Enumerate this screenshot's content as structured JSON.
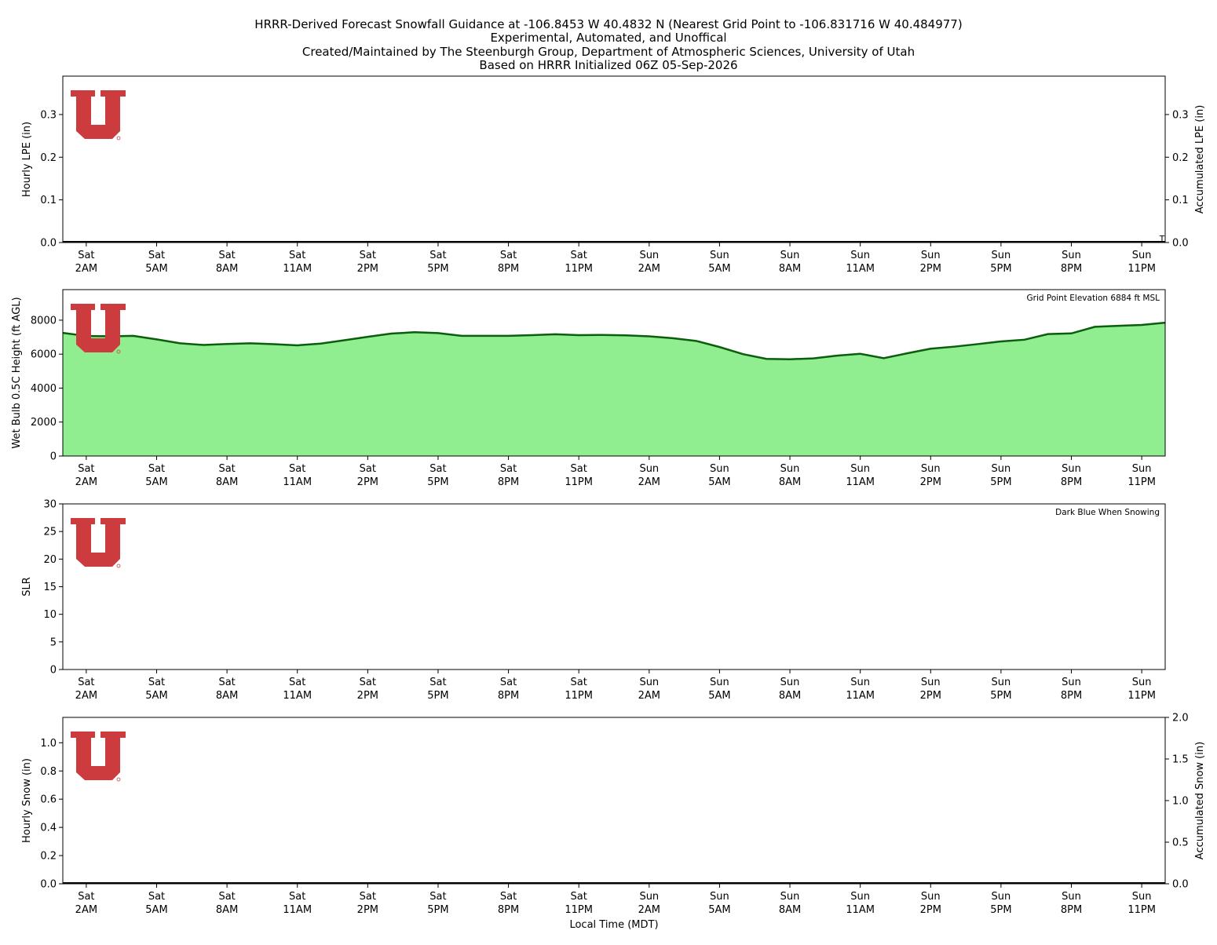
{
  "header": {
    "title_lines": [
      "HRRR-Derived Forecast Snowfall Guidance at -106.8453 W 40.4832 N (Nearest Grid Point to -106.831716 W 40.484977)",
      "Experimental, Automated, and Unoffical",
      "Created/Maintained by The Steenburgh Group, Department of Atmospheric Sciences, University of Utah",
      "Based on HRRR Initialized 06Z 05-Sep-2026"
    ]
  },
  "colors": {
    "logo_red": "#cc3b3e",
    "wetbulb_fill": "#90ee90",
    "wetbulb_line": "#0b5e0b",
    "axis": "#000000"
  },
  "chart_data": [
    {
      "type": "bar",
      "id": "lpe",
      "ylabel": "Hourly LPE (in)",
      "ylabel_right": "Accumulated LPE (in)",
      "ylim": [
        0,
        0.39
      ],
      "yticks": [
        0.0,
        0.1,
        0.2,
        0.3
      ],
      "ytick_labels": [
        "0.0",
        "0.1",
        "0.2",
        "0.3"
      ],
      "right_yticks": [
        0.0,
        0.1,
        0.2,
        0.3
      ],
      "right_ytick_labels": [
        "0.0",
        "0.1",
        "0.2",
        "0.3"
      ],
      "hourly_values": [
        0,
        0,
        0,
        0,
        0,
        0,
        0,
        0,
        0,
        0,
        0,
        0,
        0,
        0,
        0,
        0,
        0,
        0,
        0,
        0,
        0,
        0,
        0,
        0,
        0,
        0,
        0,
        0,
        0,
        0,
        0,
        0,
        0,
        0,
        0,
        0,
        0,
        0,
        0,
        0,
        0,
        0,
        0,
        0,
        0,
        0,
        0,
        0
      ],
      "accumulated_label": "T"
    },
    {
      "type": "area",
      "id": "wetbulb",
      "ylabel": "Wet Bulb 0.5C Height (ft AGL)",
      "ylim": [
        0,
        9800
      ],
      "yticks": [
        0,
        2000,
        4000,
        6000,
        8000
      ],
      "ytick_labels": [
        "0",
        "2000",
        "4000",
        "6000",
        "8000"
      ],
      "note": "Grid Point Elevation 6884 ft MSL",
      "values": [
        7250,
        7070,
        7050,
        7080,
        6870,
        6640,
        6540,
        6600,
        6640,
        6590,
        6520,
        6620,
        6820,
        7020,
        7210,
        7290,
        7240,
        7080,
        7080,
        7080,
        7120,
        7170,
        7120,
        7130,
        7110,
        7050,
        6940,
        6780,
        6420,
        6000,
        5720,
        5700,
        5750,
        5910,
        6020,
        5760,
        6050,
        6320,
        6440,
        6590,
        6750,
        6850,
        7180,
        7220,
        7610,
        7670,
        7720,
        7850
      ]
    },
    {
      "type": "line",
      "id": "slr",
      "ylabel": "SLR",
      "ylim": [
        0,
        30
      ],
      "yticks": [
        0,
        5,
        10,
        15,
        20,
        25,
        30
      ],
      "ytick_labels": [
        "0",
        "5",
        "10",
        "15",
        "20",
        "25",
        "30"
      ],
      "note": "Dark Blue When Snowing",
      "values": []
    },
    {
      "type": "bar",
      "id": "snow",
      "ylabel": "Hourly Snow (in)",
      "ylabel_right": "Accumulated Snow (in)",
      "ylim": [
        0,
        1.18
      ],
      "yticks": [
        0.0,
        0.2,
        0.4,
        0.6,
        0.8,
        1.0
      ],
      "ytick_labels": [
        "0.0",
        "0.2",
        "0.4",
        "0.6",
        "0.8",
        "1.0"
      ],
      "right_ylim": [
        0,
        2.0
      ],
      "right_yticks": [
        0.0,
        0.5,
        1.0,
        1.5,
        2.0
      ],
      "right_ytick_labels": [
        "0.0",
        "0.5",
        "1.0",
        "1.5",
        "2.0"
      ],
      "hourly_values": [
        0,
        0,
        0,
        0,
        0,
        0,
        0,
        0,
        0,
        0,
        0,
        0,
        0,
        0,
        0,
        0,
        0,
        0,
        0,
        0,
        0,
        0,
        0,
        0,
        0,
        0,
        0,
        0,
        0,
        0,
        0,
        0,
        0,
        0,
        0,
        0,
        0,
        0,
        0,
        0,
        0,
        0,
        0,
        0,
        0,
        0,
        0,
        0
      ],
      "xlabel": "Local Time (MDT)"
    }
  ],
  "x_axis": {
    "hours_range": [
      -1,
      46
    ],
    "tick_hours": [
      0,
      3,
      6,
      9,
      12,
      15,
      18,
      21,
      24,
      27,
      30,
      33,
      36,
      39,
      42,
      45
    ],
    "tick_day": [
      "Sat",
      "Sat",
      "Sat",
      "Sat",
      "Sat",
      "Sat",
      "Sat",
      "Sat",
      "Sun",
      "Sun",
      "Sun",
      "Sun",
      "Sun",
      "Sun",
      "Sun",
      "Sun"
    ],
    "tick_time": [
      "2AM",
      "5AM",
      "8AM",
      "11AM",
      "2PM",
      "5PM",
      "8PM",
      "11PM",
      "2AM",
      "5AM",
      "8AM",
      "11AM",
      "2PM",
      "5PM",
      "8PM",
      "11PM"
    ]
  }
}
